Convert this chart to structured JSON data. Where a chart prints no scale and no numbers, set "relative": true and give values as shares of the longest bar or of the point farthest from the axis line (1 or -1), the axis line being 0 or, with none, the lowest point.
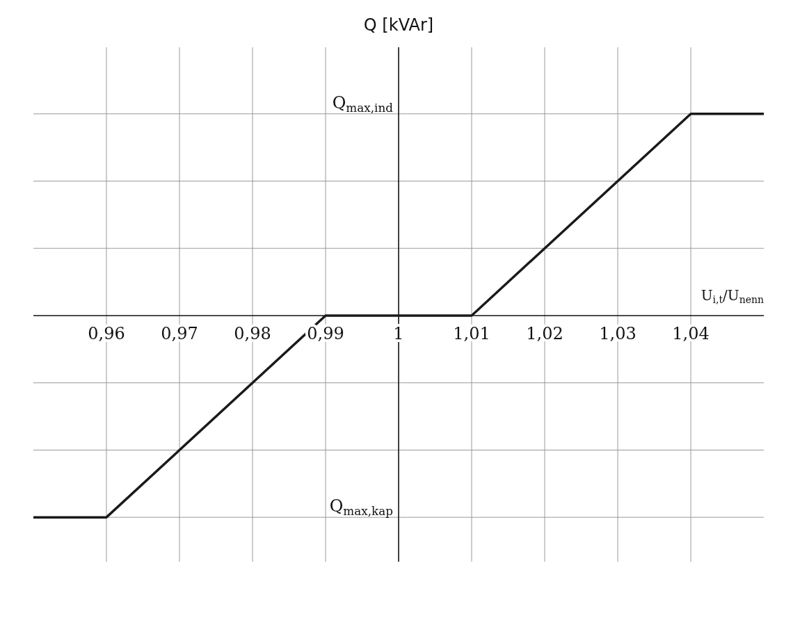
{
  "chart_data": {
    "type": "line",
    "xlabel": "U$_{i,t}$/U$_{nenn}$",
    "ylabel": "Q [kVAr]",
    "x": [
      0.95,
      0.96,
      0.99,
      1.01,
      1.04,
      1.05
    ],
    "series": [
      {
        "color": "#1a1a1a",
        "values": [
          -1,
          -1,
          0,
          0,
          1,
          1
        ]
      }
    ],
    "relative": true,
    "annotations": [
      "Q$_{max,ind}$",
      "Q$_{max,kap}$"
    ],
    "xlim": [
      0.95,
      1.05
    ],
    "xticks": [
      {
        "value": 0.96,
        "label": "0,96"
      },
      {
        "value": 0.97,
        "label": "0,97"
      },
      {
        "value": 0.98,
        "label": "0,98"
      },
      {
        "value": 0.99,
        "label": "0,99"
      },
      1,
      {
        "value": 1.01,
        "label": "1,01"
      },
      {
        "value": 1.02,
        "label": "1,02"
      },
      {
        "value": 1.03,
        "label": "1,03"
      },
      {
        "value": 1.04,
        "label": "1,04"
      }
    ],
    "ref_lines": [
      {
        "axis": "x",
        "value": 1,
        "color": "#111111"
      }
    ],
    "grid": true,
    "legend": false,
    "marker": "none",
    "line_style": "solid"
  }
}
